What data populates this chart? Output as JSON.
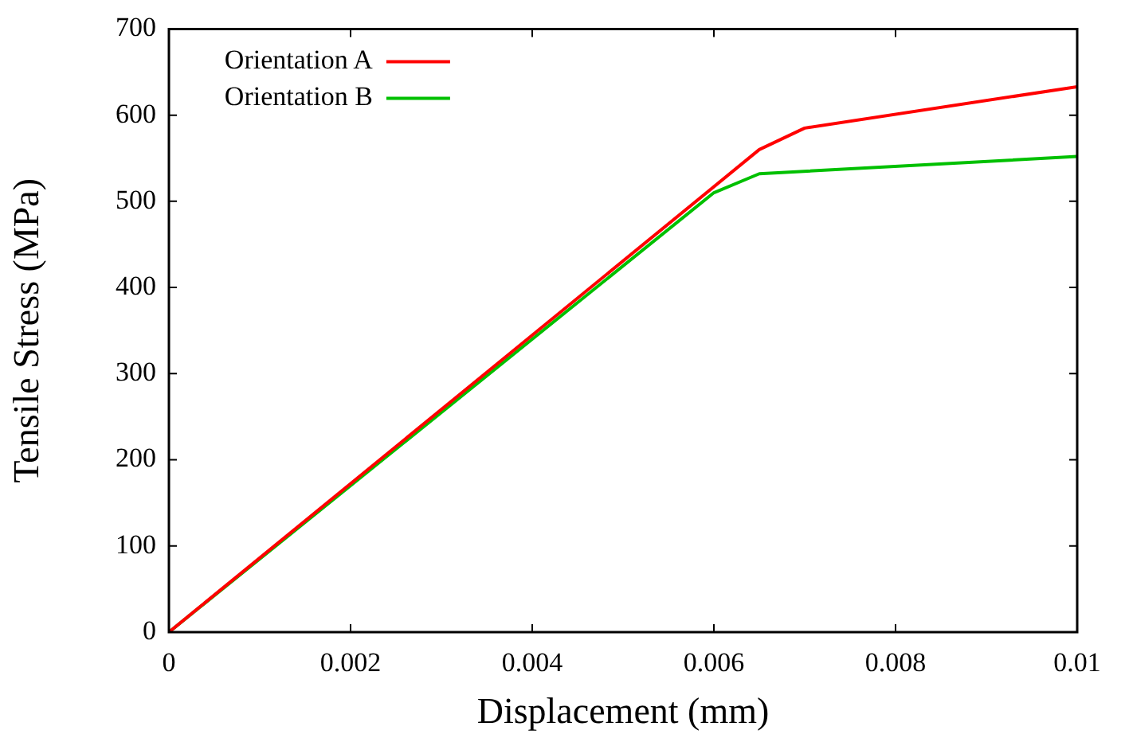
{
  "chart_data": {
    "type": "line",
    "xlabel": "Displacement (mm)",
    "ylabel": "Tensile Stress (MPa)",
    "xlim": [
      0,
      0.01
    ],
    "xticks": [
      0,
      0.002,
      0.004,
      0.006,
      0.008,
      0.01
    ],
    "ylim": [
      0,
      700
    ],
    "yticks": [
      0,
      100,
      200,
      300,
      400,
      500,
      600,
      700
    ],
    "grid": false,
    "legend": "top left",
    "marker": "none",
    "line_style": "solid",
    "series": [
      {
        "name": "Orientation A",
        "color": "#ff0000",
        "x": [
          0,
          0.0065,
          0.007,
          0.01
        ],
        "values": [
          0,
          560,
          585,
          633
        ]
      },
      {
        "name": "Orientation B",
        "color": "#00c000",
        "x": [
          0,
          0.006,
          0.0065,
          0.01
        ],
        "values": [
          0,
          510,
          532,
          552
        ]
      }
    ]
  }
}
